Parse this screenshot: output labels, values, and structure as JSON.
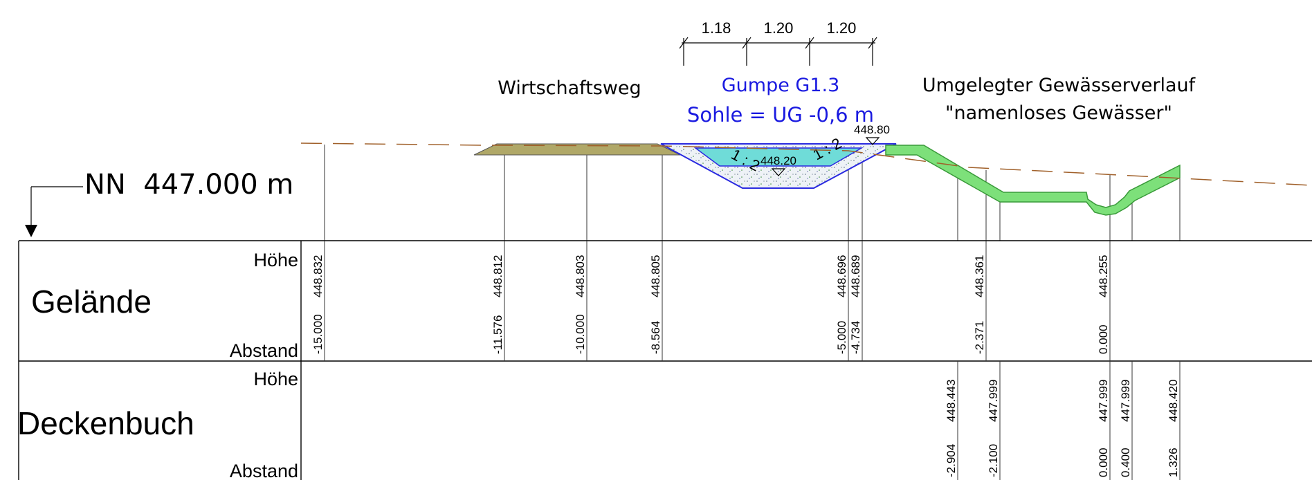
{
  "datum_label": "NN  447.000 m",
  "dimensions": [
    "1.18",
    "1.20",
    "1.20"
  ],
  "labels": {
    "wirtschaftsweg": "Wirtschaftsweg",
    "gumpe_title": "Gumpe G1.3",
    "gumpe_sohle": "Sohle = UG -0,6 m",
    "stream_line1": "Umgelegter Gewässerverlauf",
    "stream_line2": "\"namenloses Gewässer\"",
    "water_level": "448.20",
    "crest_level": "448.80",
    "slope_left": "1 : 2",
    "slope_right": "1 : 2"
  },
  "table": {
    "rows": [
      {
        "name": "Gelände",
        "top_label": "Höhe",
        "bottom_label": "Abstand"
      },
      {
        "name": "Deckenbuch",
        "top_label": "Höhe",
        "bottom_label": "Abstand"
      }
    ]
  },
  "gelaende": [
    {
      "abstand": "-15.000",
      "hoehe": "448.832"
    },
    {
      "abstand": "-11.576",
      "hoehe": "448.812"
    },
    {
      "abstand": "-10.000",
      "hoehe": "448.803"
    },
    {
      "abstand": "-8.564",
      "hoehe": "448.805"
    },
    {
      "abstand": "-5.000",
      "hoehe": "448.696"
    },
    {
      "abstand": "-4.734",
      "hoehe": "448.689"
    },
    {
      "abstand": "-2.371",
      "hoehe": "448.361"
    },
    {
      "abstand": "0.000",
      "hoehe": "448.255"
    }
  ],
  "deckenbuch": [
    {
      "abstand": "-2.904",
      "hoehe": "448.443"
    },
    {
      "abstand": "-2.100",
      "hoehe": "447.999"
    },
    {
      "abstand": "0.000",
      "hoehe": "447.999"
    },
    {
      "abstand": "0.400",
      "hoehe": "447.999"
    },
    {
      "abstand": "1.326",
      "hoehe": "448.420"
    }
  ],
  "colors": {
    "terrain_line": "#a0602a",
    "road_fill": "#b0a868",
    "water_fill": "#6fdcd8",
    "pond_outline": "#2a2ae0",
    "stream_fill": "#7de07a",
    "stream_stroke": "#3a9a3a",
    "label_blue": "#1a1ae0"
  }
}
